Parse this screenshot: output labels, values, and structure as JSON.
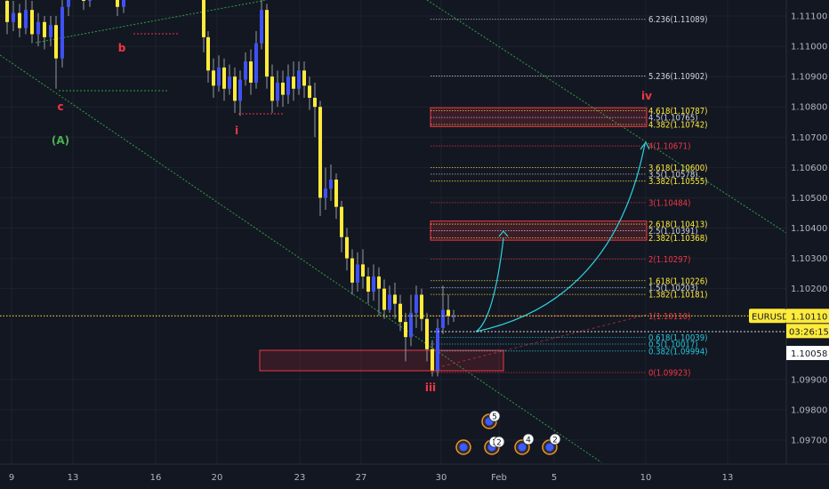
{
  "chart_data": {
    "type": "candlestick",
    "symbol": "EURUSD",
    "last_price": "1.10110",
    "countdown": "03:26:15",
    "crosshair_price": "1.10058",
    "ylim": [
      1.0964,
      1.1118
    ],
    "price_ticks": [
      "1.11100",
      "1.11000",
      "1.10900",
      "1.10800",
      "1.10700",
      "1.10600",
      "1.10500",
      "1.10400",
      "1.10300",
      "1.10200",
      "1.09900",
      "1.09800",
      "1.09700"
    ],
    "time_ticks": [
      "9",
      "13",
      "16",
      "20",
      "23",
      "27",
      "30",
      "Feb",
      "5",
      "10",
      "13"
    ],
    "fib_levels": [
      {
        "label": "6.236(1.11089)",
        "price": 1.11089,
        "color": "#d1d4dc"
      },
      {
        "label": "5.236(1.10902)",
        "price": 1.10902,
        "color": "#d1d4dc"
      },
      {
        "label": "4.618(1.10787)",
        "price": 1.10787,
        "color": "#ffeb3b"
      },
      {
        "label": "4.5(1.10765)",
        "price": 1.10765,
        "color": "#d1d4dc"
      },
      {
        "label": "4.382(1.10742)",
        "price": 1.10742,
        "color": "#ffeb3b"
      },
      {
        "label": "4(1.10671)",
        "price": 1.10671,
        "color": "#f23645"
      },
      {
        "label": "3.618(1.10600)",
        "price": 1.106,
        "color": "#ffeb3b"
      },
      {
        "label": "3.5(1.10578)",
        "price": 1.10578,
        "color": "#d1d4dc"
      },
      {
        "label": "3.382(1.10555)",
        "price": 1.10555,
        "color": "#ffeb3b"
      },
      {
        "label": "3(1.10484)",
        "price": 1.10484,
        "color": "#f23645"
      },
      {
        "label": "2.618(1.10413)",
        "price": 1.10413,
        "color": "#ffeb3b"
      },
      {
        "label": "2.5(1.10391)",
        "price": 1.10391,
        "color": "#d1d4dc"
      },
      {
        "label": "2.382(1.10368)",
        "price": 1.10368,
        "color": "#ffeb3b"
      },
      {
        "label": "2(1.10297)",
        "price": 1.10297,
        "color": "#f23645"
      },
      {
        "label": "1.618(1.10226)",
        "price": 1.10226,
        "color": "#ffeb3b"
      },
      {
        "label": "1.5(1.10203)",
        "price": 1.10203,
        "color": "#d1d4dc"
      },
      {
        "label": "1.382(1.10181)",
        "price": 1.10181,
        "color": "#ffeb3b"
      },
      {
        "label": "1(1.10110)",
        "price": 1.1011,
        "color": "#f23645"
      },
      {
        "label": "0.618(1.10039)",
        "price": 1.10039,
        "color": "#26c6da"
      },
      {
        "label": "0.5(1.10017)",
        "price": 1.10017,
        "color": "#26c6da"
      },
      {
        "label": "0.382(1.09994)",
        "price": 1.09994,
        "color": "#26c6da"
      },
      {
        "label": "0(1.09923)",
        "price": 1.09923,
        "color": "#f23645"
      }
    ],
    "wave_labels": [
      {
        "text": "(A)",
        "color": "#4caf50"
      },
      {
        "text": "c",
        "color": "#f23645"
      },
      {
        "text": "b",
        "color": "#f23645"
      },
      {
        "text": "i",
        "color": "#f23645"
      },
      {
        "text": "iii",
        "color": "#f23645"
      },
      {
        "text": "iv",
        "color": "#f23645"
      }
    ],
    "event_badges": [
      "5",
      "3",
      "2",
      "4",
      "2"
    ]
  }
}
